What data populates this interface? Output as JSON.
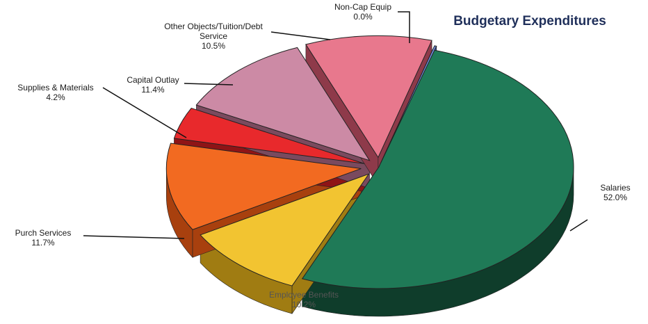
{
  "chart_data": {
    "type": "pie",
    "title": "Budgetary Expenditures",
    "slices": [
      {
        "name": "Salaries",
        "label_lines": [
          "Salaries"
        ],
        "value": 52.0,
        "value_label": "52.0%",
        "color": "#1f7a57",
        "dark": "#0f3d2b"
      },
      {
        "name": "Employee Benefits",
        "label_lines": [
          "Employee Benefits"
        ],
        "value": 10.2,
        "value_label": "10.2%",
        "color": "#f2c431",
        "dark": "#a07c12"
      },
      {
        "name": "Purch Services",
        "label_lines": [
          "Purch Services"
        ],
        "value": 11.7,
        "value_label": "11.7%",
        "color": "#f26a21",
        "dark": "#a8400e"
      },
      {
        "name": "Supplies & Materials",
        "label_lines": [
          "Supplies & Materials"
        ],
        "value": 4.2,
        "value_label": "4.2%",
        "color": "#e8292c",
        "dark": "#8f1416"
      },
      {
        "name": "Capital Outlay",
        "label_lines": [
          "Capital Outlay"
        ],
        "value": 11.4,
        "value_label": "11.4%",
        "color": "#cc8aa5",
        "dark": "#7a4a5e"
      },
      {
        "name": "Other Objects/Tuition/Debt Service",
        "label_lines": [
          "Other Objects/Tuition/Debt",
          "Service"
        ],
        "value": 10.5,
        "value_label": "10.5%",
        "color": "#e8788d",
        "dark": "#8e3a4a"
      },
      {
        "name": "Non-Cap Equip",
        "label_lines": [
          "Non-Cap Equip"
        ],
        "value": 0.0,
        "value_label": "0.0%",
        "color": "#6f8ee0",
        "dark": "#3b5199"
      }
    ]
  }
}
